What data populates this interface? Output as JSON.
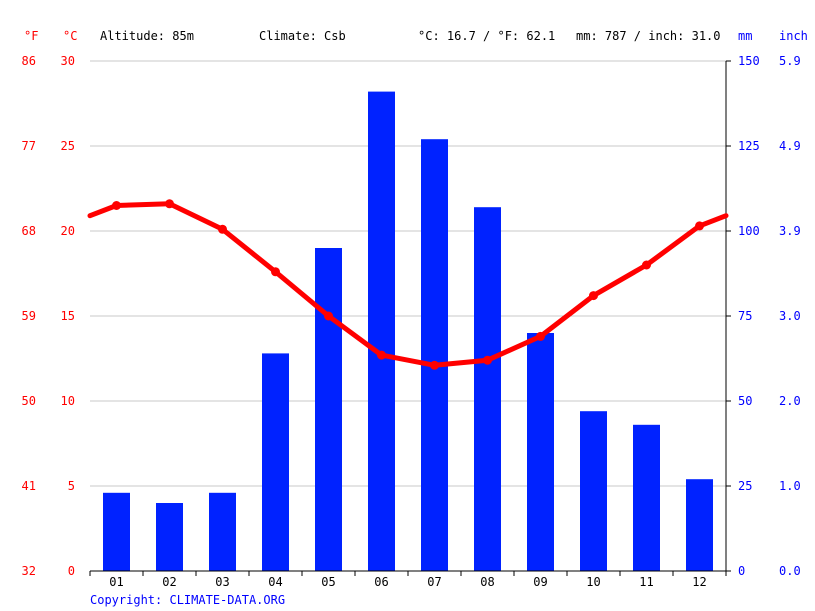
{
  "header": {
    "unit_f": "°F",
    "unit_c": "°C",
    "altitude": "Altitude: 85m",
    "climate": "Climate: Csb",
    "temp_avg": "°C: 16.7 / °F: 62.1",
    "precip_total": "mm: 787 / inch: 31.0",
    "unit_mm": "mm",
    "unit_inch": "inch"
  },
  "copyright": "Copyright: CLIMATE-DATA.ORG",
  "colors": {
    "temperature": "#ff0000",
    "precipitation": "#0022ff",
    "grid": "#c8c8c8"
  },
  "chart_data": {
    "type": "bar",
    "categories": [
      "01",
      "02",
      "03",
      "04",
      "05",
      "06",
      "07",
      "08",
      "09",
      "10",
      "11",
      "12"
    ],
    "series": [
      {
        "values": [
          23,
          20,
          23,
          64,
          95,
          141,
          127,
          107,
          70,
          47,
          43,
          27
        ]
      },
      {
        "type": "line",
        "values": [
          21.5,
          21.6,
          20.1,
          17.6,
          15.0,
          12.7,
          12.1,
          12.4,
          13.8,
          16.2,
          18.0,
          20.3
        ]
      }
    ],
    "axes": {
      "left_f": {
        "ticks": [
          "86",
          "77",
          "68",
          "59",
          "50",
          "41",
          "32"
        ]
      },
      "left_c": {
        "ticks": [
          "30",
          "25",
          "20",
          "15",
          "10",
          "5",
          "0"
        ],
        "ylim": [
          0,
          30
        ]
      },
      "right_mm": {
        "ticks": [
          "150",
          "125",
          "100",
          "75",
          "50",
          "25",
          "0"
        ],
        "ylim": [
          0,
          150
        ]
      },
      "right_inch": {
        "ticks": [
          "5.9",
          "4.9",
          "3.9",
          "3.0",
          "2.0",
          "1.0",
          "0.0"
        ]
      }
    },
    "line_edge": {
      "start": 20.9,
      "end": 20.9
    },
    "grid": true
  }
}
